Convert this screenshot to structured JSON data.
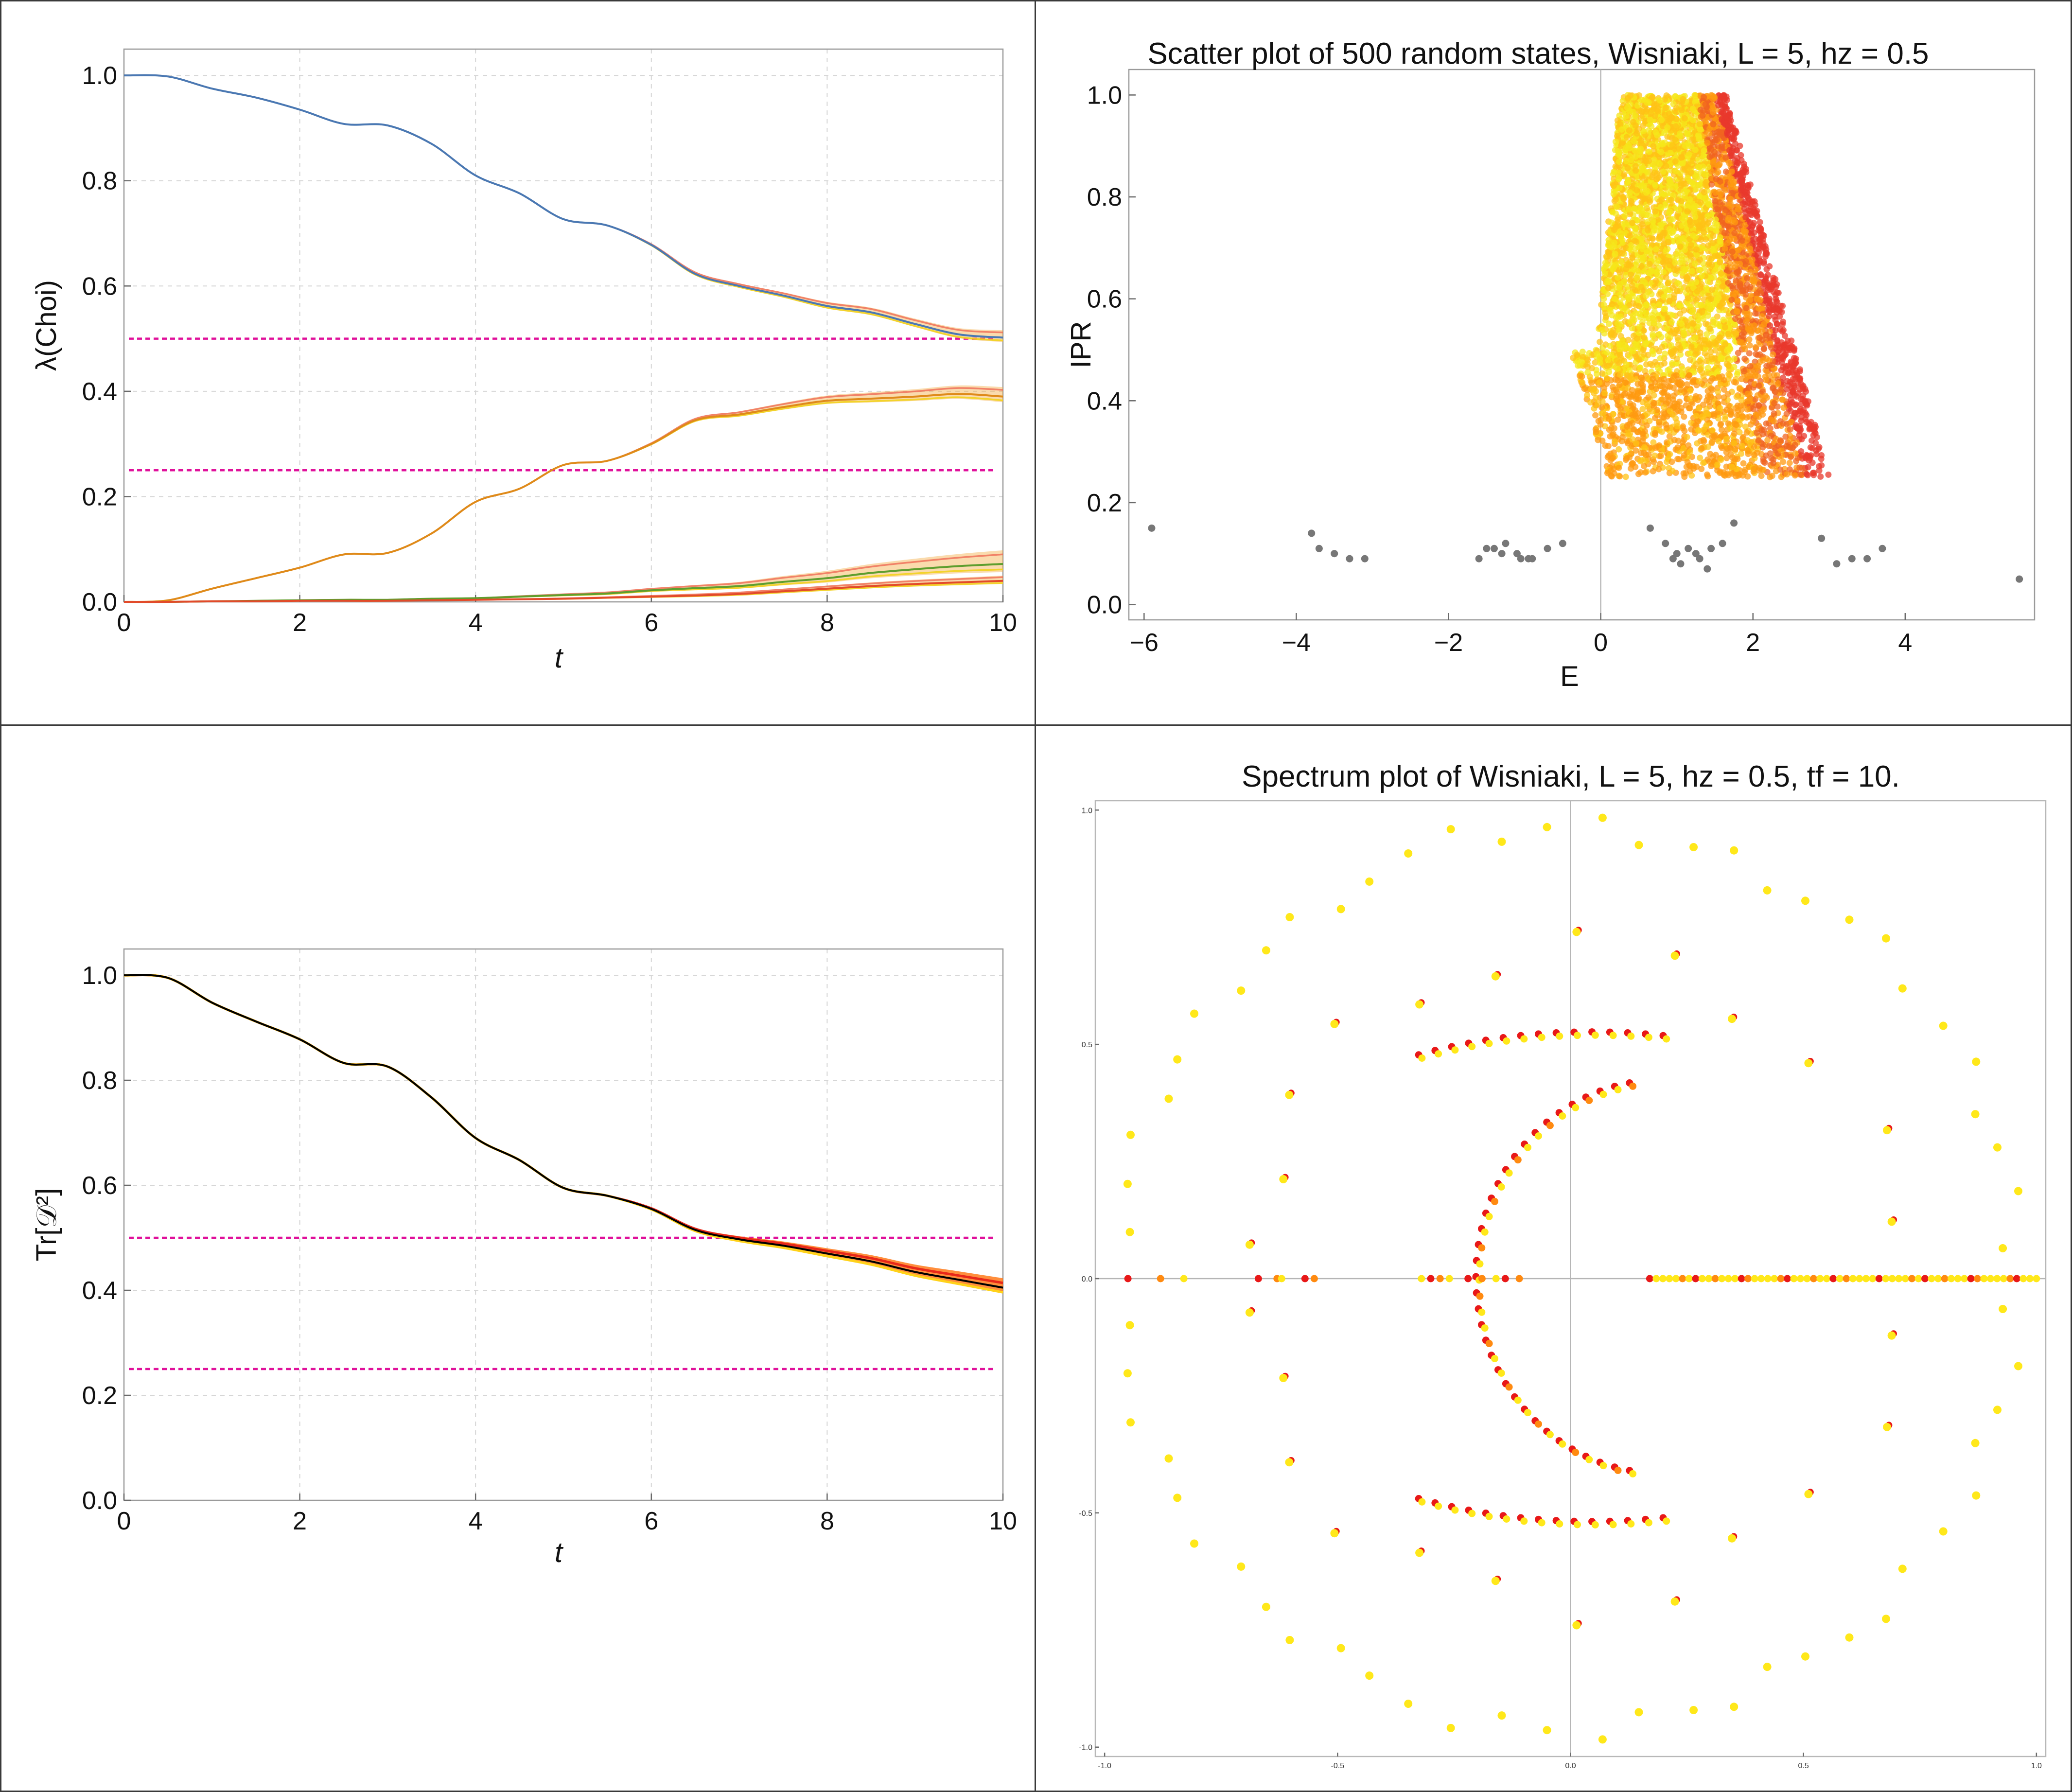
{
  "chart_data": [
    {
      "id": "choi",
      "type": "line",
      "title": "",
      "xlabel": "t",
      "ylabel": "λ(Choi)",
      "xlim": [
        0,
        10
      ],
      "ylim": [
        0,
        1.05
      ],
      "xticks": [
        0,
        2,
        4,
        6,
        8,
        10
      ],
      "yticks": [
        0.0,
        0.2,
        0.4,
        0.6,
        0.8,
        1.0
      ],
      "xtick_labels": [
        "0",
        "2",
        "4",
        "6",
        "8",
        "10"
      ],
      "ytick_labels": [
        "0.0",
        "0.2",
        "0.4",
        "0.6",
        "0.8",
        "1.0"
      ],
      "grid": true,
      "hlines": [
        {
          "y": 0.5,
          "color": "#e0119b",
          "style": "dashed"
        },
        {
          "y": 0.25,
          "color": "#e0119b",
          "style": "dashed"
        }
      ],
      "x": [
        0,
        0.5,
        1,
        1.5,
        2,
        2.5,
        3,
        3.5,
        4,
        4.5,
        5,
        5.5,
        6,
        6.5,
        7,
        7.5,
        8,
        8.5,
        9,
        9.5,
        10
      ],
      "series": [
        {
          "color": "#4a78b3",
          "values": [
            1.0,
            0.998,
            0.975,
            0.958,
            0.935,
            0.908,
            0.905,
            0.87,
            0.81,
            0.776,
            0.727,
            0.715,
            0.678,
            0.623,
            0.6,
            0.582,
            0.562,
            0.55,
            0.528,
            0.508,
            0.502
          ],
          "band": [
            0.0,
            0.0,
            0.0,
            0.0,
            0.0,
            0.0,
            0.0,
            0.0,
            0.0,
            0.0,
            0.0,
            0.0,
            0.002,
            0.004,
            0.005,
            0.006,
            0.008,
            0.009,
            0.01,
            0.012,
            0.014
          ]
        },
        {
          "color": "#df8a1a",
          "values": [
            0.0,
            0.003,
            0.025,
            0.045,
            0.065,
            0.09,
            0.093,
            0.13,
            0.19,
            0.215,
            0.26,
            0.268,
            0.3,
            0.345,
            0.356,
            0.37,
            0.382,
            0.386,
            0.39,
            0.395,
            0.39
          ],
          "band": [
            0.0,
            0.0,
            0.0,
            0.0,
            0.0,
            0.0,
            0.0,
            0.0,
            0.0,
            0.0,
            0.0,
            0.0,
            0.002,
            0.004,
            0.006,
            0.008,
            0.01,
            0.012,
            0.014,
            0.016,
            0.018
          ]
        },
        {
          "color": "#5e9e2e",
          "values": [
            0.0,
            0.0,
            0.001,
            0.002,
            0.003,
            0.004,
            0.004,
            0.006,
            0.007,
            0.01,
            0.013,
            0.016,
            0.022,
            0.026,
            0.03,
            0.038,
            0.045,
            0.055,
            0.062,
            0.068,
            0.072
          ],
          "band": [
            0.0,
            0.0,
            0.0,
            0.0,
            0.0,
            0.0,
            0.0,
            0.0,
            0.0,
            0.001,
            0.002,
            0.003,
            0.004,
            0.006,
            0.008,
            0.011,
            0.014,
            0.017,
            0.02,
            0.023,
            0.026
          ]
        },
        {
          "color": "#e24a2a",
          "values": [
            0.0,
            0.0,
            0.001,
            0.001,
            0.002,
            0.002,
            0.002,
            0.003,
            0.004,
            0.005,
            0.006,
            0.008,
            0.01,
            0.012,
            0.015,
            0.02,
            0.025,
            0.03,
            0.034,
            0.037,
            0.04
          ],
          "band": [
            0.0,
            0.0,
            0.0,
            0.0,
            0.0,
            0.0,
            0.0,
            0.0,
            0.0,
            0.0,
            0.001,
            0.001,
            0.002,
            0.003,
            0.004,
            0.005,
            0.006,
            0.007,
            0.008,
            0.009,
            0.01
          ]
        }
      ]
    },
    {
      "id": "ipr",
      "type": "scatter",
      "title": "Scatter plot of 500 random states, Wisniaki, L = 5, hz = 0.5",
      "xlabel": "E",
      "ylabel": "IPR",
      "xlim": [
        -6.2,
        5.7
      ],
      "ylim": [
        -0.03,
        1.05
      ],
      "xticks": [
        -6,
        -4,
        -2,
        0,
        2,
        4
      ],
      "yticks": [
        0.0,
        0.2,
        0.4,
        0.6,
        0.8,
        1.0
      ],
      "xtick_labels": [
        "−6",
        "−4",
        "−2",
        "0",
        "2",
        "4"
      ],
      "ytick_labels": [
        "0.0",
        "0.2",
        "0.4",
        "0.6",
        "0.8",
        "1.0"
      ],
      "point_colors": [
        "#f5e71a",
        "#ffc316",
        "#ff9a10",
        "#f06420",
        "#e8382c"
      ],
      "eigen_color": "#777777",
      "cloud": {
        "e_min": -0.4,
        "e_max": 3.0,
        "ipr_min": 0.25,
        "ipr_max": 1.0
      },
      "eigen_points": [
        {
          "x": -5.9,
          "y": 0.15
        },
        {
          "x": -3.8,
          "y": 0.14
        },
        {
          "x": -3.7,
          "y": 0.11
        },
        {
          "x": -3.5,
          "y": 0.1
        },
        {
          "x": -3.3,
          "y": 0.09
        },
        {
          "x": -3.1,
          "y": 0.09
        },
        {
          "x": -1.6,
          "y": 0.09
        },
        {
          "x": -1.5,
          "y": 0.11
        },
        {
          "x": -1.4,
          "y": 0.11
        },
        {
          "x": -1.3,
          "y": 0.1
        },
        {
          "x": -1.25,
          "y": 0.12
        },
        {
          "x": -1.1,
          "y": 0.1
        },
        {
          "x": -1.05,
          "y": 0.09
        },
        {
          "x": -0.95,
          "y": 0.09
        },
        {
          "x": -0.9,
          "y": 0.09
        },
        {
          "x": -0.7,
          "y": 0.11
        },
        {
          "x": -0.5,
          "y": 0.12
        },
        {
          "x": 0.65,
          "y": 0.15
        },
        {
          "x": 0.85,
          "y": 0.12
        },
        {
          "x": 0.95,
          "y": 0.09
        },
        {
          "x": 1.0,
          "y": 0.1
        },
        {
          "x": 1.05,
          "y": 0.08
        },
        {
          "x": 1.15,
          "y": 0.11
        },
        {
          "x": 1.25,
          "y": 0.1
        },
        {
          "x": 1.3,
          "y": 0.09
        },
        {
          "x": 1.4,
          "y": 0.07
        },
        {
          "x": 1.45,
          "y": 0.11
        },
        {
          "x": 1.6,
          "y": 0.12
        },
        {
          "x": 1.75,
          "y": 0.16
        },
        {
          "x": 2.9,
          "y": 0.13
        },
        {
          "x": 3.1,
          "y": 0.08
        },
        {
          "x": 3.3,
          "y": 0.09
        },
        {
          "x": 3.5,
          "y": 0.09
        },
        {
          "x": 3.7,
          "y": 0.11
        },
        {
          "x": 5.5,
          "y": 0.05
        }
      ]
    },
    {
      "id": "trace",
      "type": "line",
      "title": "",
      "xlabel": "t",
      "ylabel": "Tr[𝒟²]",
      "xlim": [
        0,
        10
      ],
      "ylim": [
        0,
        1.05
      ],
      "xticks": [
        0,
        2,
        4,
        6,
        8,
        10
      ],
      "yticks": [
        0.0,
        0.2,
        0.4,
        0.6,
        0.8,
        1.0
      ],
      "xtick_labels": [
        "0",
        "2",
        "4",
        "6",
        "8",
        "10"
      ],
      "ytick_labels": [
        "0.0",
        "0.2",
        "0.4",
        "0.6",
        "0.8",
        "1.0"
      ],
      "grid": true,
      "hlines": [
        {
          "y": 0.5,
          "color": "#e0119b",
          "style": "dashed"
        },
        {
          "y": 0.25,
          "color": "#e0119b",
          "style": "dashed"
        }
      ],
      "x": [
        0,
        0.5,
        1,
        1.5,
        2,
        2.5,
        3,
        3.5,
        4,
        4.5,
        5,
        5.5,
        6,
        6.5,
        7,
        7.5,
        8,
        8.5,
        9,
        9.5,
        10
      ],
      "series": [
        {
          "color": "#000000",
          "values": [
            1.0,
            0.995,
            0.948,
            0.912,
            0.878,
            0.833,
            0.826,
            0.767,
            0.69,
            0.648,
            0.595,
            0.58,
            0.555,
            0.515,
            0.497,
            0.485,
            0.47,
            0.455,
            0.435,
            0.42,
            0.405
          ],
          "band": [
            0.0,
            0.0,
            0.0,
            0.0,
            0.0,
            0.0,
            0.0,
            0.0,
            0.0,
            0.0,
            0.0,
            0.0,
            0.002,
            0.004,
            0.006,
            0.008,
            0.01,
            0.012,
            0.014,
            0.016,
            0.018
          ]
        }
      ]
    },
    {
      "id": "spectrum",
      "type": "scatter",
      "title": "Spectrum plot of Wisniaki, L = 5, hz = 0.5, tf = 10.",
      "xlabel": "",
      "ylabel": "",
      "xlim": [
        -1.02,
        1.02
      ],
      "ylim": [
        -1.02,
        1.02
      ],
      "xticks": [
        -1.0,
        -0.5,
        0.0,
        0.5,
        1.0
      ],
      "yticks": [
        -1.0,
        -0.5,
        0.0,
        0.5,
        1.0
      ],
      "xtick_labels": [
        "-1.0",
        "-0.5",
        "0.0",
        "0.5",
        "1.0"
      ],
      "ytick_labels": [
        "-1.0",
        "-0.5",
        "0.0",
        "0.5",
        "1.0"
      ],
      "colors": {
        "unit_circle": "#ffe81a",
        "inner": [
          "#e81818",
          "#ff8a10",
          "#ffe81a"
        ]
      },
      "unit_circle_angles_deg": [
        4,
        11,
        17,
        22,
        28,
        34,
        41,
        47,
        52,
        58,
        63,
        69,
        74,
        81,
        86,
        93,
        99,
        105,
        111,
        117,
        122,
        128,
        133,
        139,
        145,
        151,
        156,
        162,
        168,
        174
      ],
      "mid_ring_radius": 0.7,
      "mid_ring_angles_deg": [
        10,
        25,
        42,
        58,
        72,
        89,
        104,
        119,
        133,
        147,
        161,
        174
      ],
      "inner_arc": {
        "center_x": 0.2,
        "radius": 0.42,
        "angle_range_deg": [
          100,
          260
        ]
      },
      "outer_arc": {
        "center_x": 0.2,
        "radius": 0.55,
        "angle_range_deg": [
          80,
          115
        ]
      },
      "real_axis_points": {
        "left": [
          -0.95,
          -0.88,
          -0.83,
          -0.67,
          -0.63,
          -0.62,
          -0.57,
          -0.55,
          -0.32,
          -0.3,
          -0.28,
          -0.26,
          -0.22,
          -0.19,
          -0.16,
          -0.14,
          -0.11
        ],
        "right_min": 0.17,
        "right_max": 1.0,
        "right_count": 60
      }
    }
  ]
}
